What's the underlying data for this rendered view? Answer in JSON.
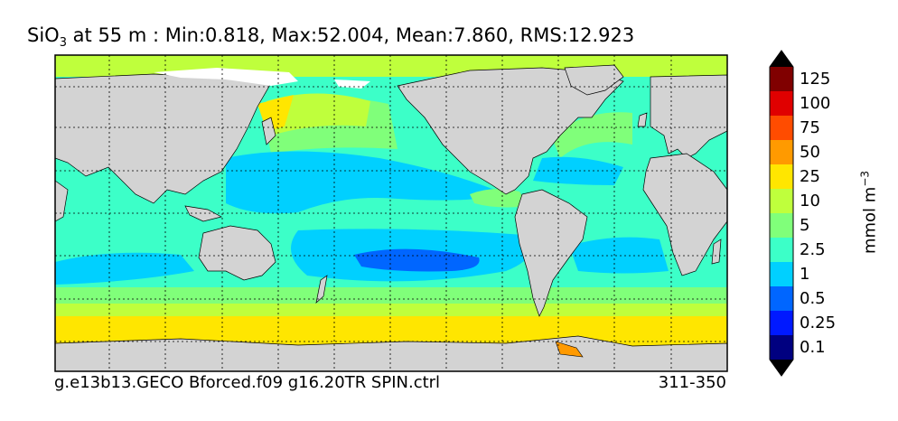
{
  "title": {
    "species_base": "SiO",
    "species_sub": "3",
    "rest": " at 55 m : Min:0.818, Max:52.004, Mean:7.860, RMS:12.923"
  },
  "footer": {
    "case": "g.e13b13.GECO Bforced.f09 g16.20TR SPIN.ctrl",
    "years": "311-350"
  },
  "colorbar": {
    "unit_base": "mmol m",
    "unit_exp": "−3",
    "levels": [
      "0.1",
      "0.25",
      "0.5",
      "1",
      "2.5",
      "5",
      "10",
      "25",
      "50",
      "75",
      "100",
      "125"
    ],
    "colors": [
      "#000080",
      "#0019ff",
      "#0066ff",
      "#00d0ff",
      "#3cffc8",
      "#80ff7a",
      "#bfff3c",
      "#ffe600",
      "#ff9a00",
      "#ff4c00",
      "#e00000",
      "#800000"
    ],
    "over_color": "#000000",
    "under_color": "#000000"
  },
  "map": {
    "land_color": "#d3d3d3",
    "no_data_color": "#ffffff"
  },
  "stats": {
    "min": 0.818,
    "max": 52.004,
    "mean": 7.86,
    "rms": 12.923
  }
}
